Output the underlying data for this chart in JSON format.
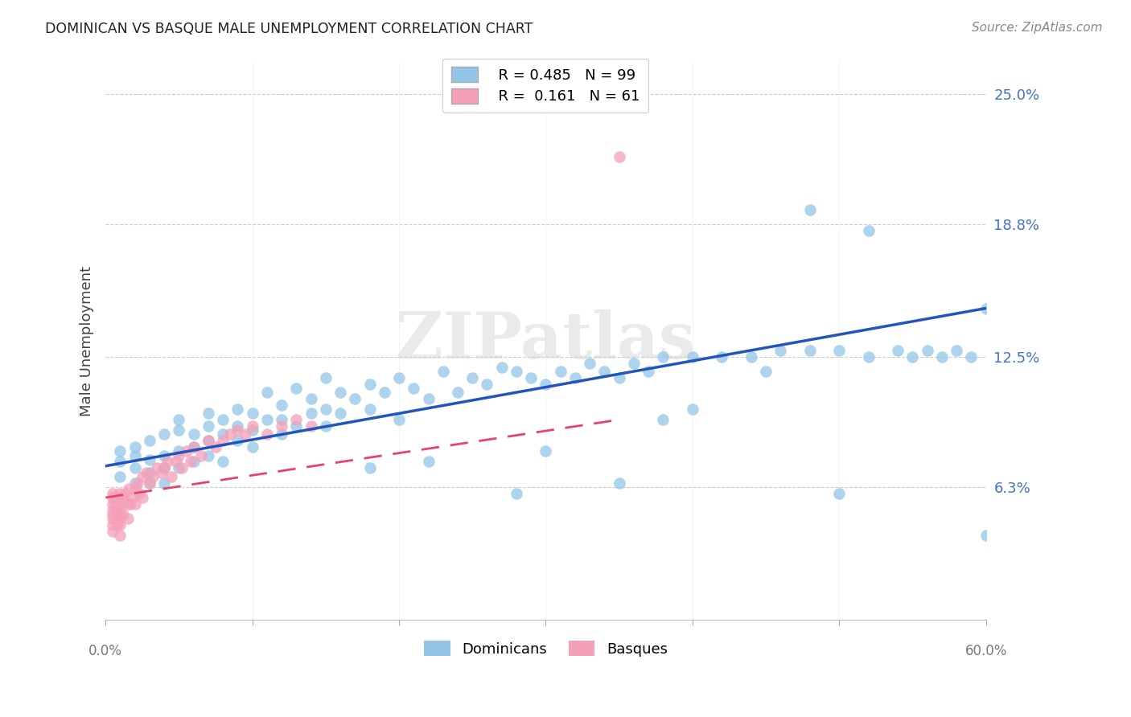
{
  "title": "DOMINICAN VS BASQUE MALE UNEMPLOYMENT CORRELATION CHART",
  "source": "Source: ZipAtlas.com",
  "ylabel": "Male Unemployment",
  "ytick_labels": [
    "25.0%",
    "18.8%",
    "12.5%",
    "6.3%"
  ],
  "ytick_values": [
    0.25,
    0.188,
    0.125,
    0.063
  ],
  "xmin": 0.0,
  "xmax": 0.6,
  "ymin": 0.0,
  "ymax": 0.265,
  "color_blue": "#92c5e8",
  "color_pink": "#f4a0b8",
  "line_blue": "#2255bb",
  "line_pink": "#e84070",
  "watermark": "ZIPatlas",
  "dom_line_x": [
    0.0,
    0.6
  ],
  "dom_line_y": [
    0.073,
    0.148
  ],
  "bas_line_x": [
    0.0,
    0.35
  ],
  "bas_line_y": [
    0.058,
    0.095
  ],
  "dominicans_x": [
    0.01,
    0.01,
    0.01,
    0.02,
    0.02,
    0.02,
    0.02,
    0.03,
    0.03,
    0.03,
    0.03,
    0.04,
    0.04,
    0.04,
    0.04,
    0.05,
    0.05,
    0.05,
    0.05,
    0.06,
    0.06,
    0.06,
    0.07,
    0.07,
    0.07,
    0.07,
    0.08,
    0.08,
    0.08,
    0.09,
    0.09,
    0.09,
    0.1,
    0.1,
    0.1,
    0.11,
    0.11,
    0.12,
    0.12,
    0.12,
    0.13,
    0.13,
    0.14,
    0.14,
    0.15,
    0.15,
    0.15,
    0.16,
    0.16,
    0.17,
    0.18,
    0.18,
    0.19,
    0.2,
    0.2,
    0.21,
    0.22,
    0.23,
    0.24,
    0.25,
    0.26,
    0.27,
    0.28,
    0.29,
    0.3,
    0.31,
    0.32,
    0.33,
    0.34,
    0.35,
    0.36,
    0.37,
    0.38,
    0.4,
    0.42,
    0.44,
    0.46,
    0.48,
    0.5,
    0.52,
    0.54,
    0.55,
    0.56,
    0.57,
    0.58,
    0.59,
    0.6,
    0.6,
    0.48,
    0.52,
    0.5,
    0.4,
    0.35,
    0.45,
    0.38,
    0.3,
    0.28,
    0.22,
    0.18
  ],
  "dominicans_y": [
    0.075,
    0.08,
    0.068,
    0.072,
    0.078,
    0.065,
    0.082,
    0.07,
    0.076,
    0.065,
    0.085,
    0.078,
    0.072,
    0.088,
    0.065,
    0.08,
    0.09,
    0.072,
    0.095,
    0.082,
    0.088,
    0.075,
    0.085,
    0.092,
    0.078,
    0.098,
    0.088,
    0.095,
    0.075,
    0.092,
    0.085,
    0.1,
    0.09,
    0.098,
    0.082,
    0.095,
    0.108,
    0.088,
    0.095,
    0.102,
    0.092,
    0.11,
    0.098,
    0.105,
    0.092,
    0.1,
    0.115,
    0.098,
    0.108,
    0.105,
    0.1,
    0.112,
    0.108,
    0.095,
    0.115,
    0.11,
    0.105,
    0.118,
    0.108,
    0.115,
    0.112,
    0.12,
    0.118,
    0.115,
    0.112,
    0.118,
    0.115,
    0.122,
    0.118,
    0.115,
    0.122,
    0.118,
    0.125,
    0.125,
    0.125,
    0.125,
    0.128,
    0.128,
    0.128,
    0.125,
    0.128,
    0.125,
    0.128,
    0.125,
    0.128,
    0.125,
    0.148,
    0.04,
    0.195,
    0.185,
    0.06,
    0.1,
    0.065,
    0.118,
    0.095,
    0.08,
    0.06,
    0.075,
    0.072
  ],
  "basques_x": [
    0.005,
    0.005,
    0.005,
    0.005,
    0.005,
    0.005,
    0.005,
    0.005,
    0.007,
    0.007,
    0.008,
    0.008,
    0.008,
    0.009,
    0.009,
    0.01,
    0.01,
    0.01,
    0.01,
    0.01,
    0.012,
    0.012,
    0.013,
    0.015,
    0.015,
    0.016,
    0.017,
    0.018,
    0.02,
    0.02,
    0.022,
    0.023,
    0.025,
    0.025,
    0.028,
    0.03,
    0.032,
    0.035,
    0.038,
    0.04,
    0.042,
    0.045,
    0.048,
    0.05,
    0.052,
    0.055,
    0.058,
    0.06,
    0.065,
    0.07,
    0.075,
    0.08,
    0.085,
    0.09,
    0.095,
    0.1,
    0.11,
    0.12,
    0.13,
    0.14,
    0.35
  ],
  "basques_y": [
    0.06,
    0.058,
    0.055,
    0.052,
    0.05,
    0.048,
    0.045,
    0.042,
    0.055,
    0.05,
    0.058,
    0.052,
    0.045,
    0.06,
    0.05,
    0.055,
    0.052,
    0.048,
    0.045,
    0.04,
    0.058,
    0.05,
    0.06,
    0.055,
    0.048,
    0.062,
    0.055,
    0.058,
    0.062,
    0.055,
    0.065,
    0.06,
    0.068,
    0.058,
    0.07,
    0.065,
    0.068,
    0.072,
    0.07,
    0.072,
    0.075,
    0.068,
    0.075,
    0.078,
    0.072,
    0.08,
    0.075,
    0.082,
    0.078,
    0.085,
    0.082,
    0.085,
    0.088,
    0.09,
    0.088,
    0.092,
    0.088,
    0.092,
    0.095,
    0.092,
    0.22
  ]
}
